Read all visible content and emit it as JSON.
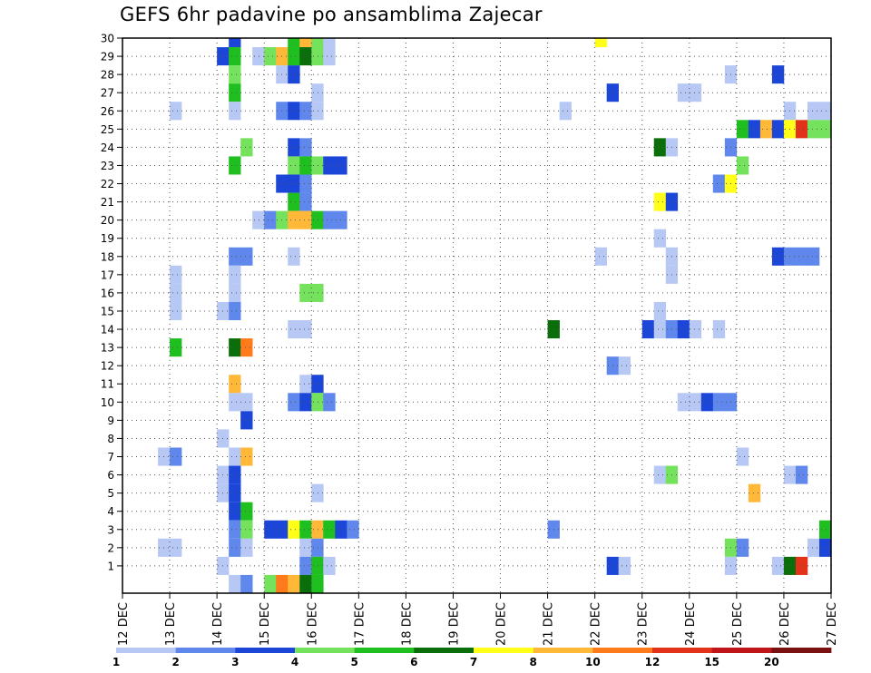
{
  "title": "GEFS 6hr padavine po ansamblima Zajecar",
  "chart_data": {
    "type": "heatmap",
    "title": "GEFS 6hr padavine po ansamblima Zajecar",
    "y_ticks": [
      1,
      2,
      3,
      4,
      5,
      6,
      7,
      8,
      9,
      10,
      11,
      12,
      13,
      14,
      15,
      16,
      17,
      18,
      19,
      20,
      21,
      22,
      23,
      24,
      25,
      26,
      27,
      28,
      29,
      30
    ],
    "x_ticks": [
      "12 DEC",
      "13 DEC",
      "14 DEC",
      "15 DEC",
      "16 DEC",
      "17 DEC",
      "18 DEC",
      "19 DEC",
      "20 DEC",
      "21 DEC",
      "22 DEC",
      "23 DEC",
      "24 DEC",
      "25 DEC",
      "26 DEC",
      "27 DEC"
    ],
    "colorbar": {
      "labels": [
        "1",
        "2",
        "3",
        "4",
        "5",
        "6",
        "7",
        "8",
        "10",
        "12",
        "15",
        "20"
      ],
      "colors": [
        "#b8c8f4",
        "#5f87ec",
        "#1c46d8",
        "#74e25c",
        "#1fbf1f",
        "#0a6e0a",
        "#ffff1a",
        "#ffb838",
        "#ff7a1a",
        "#e3321a",
        "#c0161a",
        "#7a1010"
      ]
    },
    "grid": true,
    "cells": [
      {
        "m": 30,
        "d": 14.25,
        "c": 2
      },
      {
        "m": 30,
        "d": 15.5,
        "c": 4
      },
      {
        "m": 30,
        "d": 15.75,
        "c": 7
      },
      {
        "m": 30,
        "d": 16.0,
        "c": 3
      },
      {
        "m": 30,
        "d": 16.25,
        "c": 0
      },
      {
        "m": 30,
        "d": 22.0,
        "c": 6
      },
      {
        "m": 29,
        "d": 14.0,
        "c": 2
      },
      {
        "m": 29,
        "d": 14.25,
        "c": 4
      },
      {
        "m": 29,
        "d": 14.75,
        "c": 0
      },
      {
        "m": 29,
        "d": 15.0,
        "c": 3
      },
      {
        "m": 29,
        "d": 15.25,
        "c": 7
      },
      {
        "m": 29,
        "d": 15.5,
        "c": 4
      },
      {
        "m": 29,
        "d": 15.75,
        "c": 5
      },
      {
        "m": 29,
        "d": 16.0,
        "c": 3
      },
      {
        "m": 29,
        "d": 16.25,
        "c": 0
      },
      {
        "m": 28,
        "d": 14.25,
        "c": 3
      },
      {
        "m": 28,
        "d": 15.25,
        "c": 0
      },
      {
        "m": 28,
        "d": 15.5,
        "c": 2
      },
      {
        "m": 28,
        "d": 24.75,
        "c": 0
      },
      {
        "m": 28,
        "d": 25.75,
        "c": 2
      },
      {
        "m": 27,
        "d": 14.25,
        "c": 4
      },
      {
        "m": 27,
        "d": 16.0,
        "c": 0
      },
      {
        "m": 27,
        "d": 22.25,
        "c": 2
      },
      {
        "m": 27,
        "d": 23.75,
        "c": 0
      },
      {
        "m": 27,
        "d": 24.0,
        "c": 0
      },
      {
        "m": 26,
        "d": 13.0,
        "c": 0
      },
      {
        "m": 26,
        "d": 14.25,
        "c": 0
      },
      {
        "m": 26,
        "d": 15.25,
        "c": 1
      },
      {
        "m": 26,
        "d": 15.5,
        "c": 2
      },
      {
        "m": 26,
        "d": 15.75,
        "c": 1
      },
      {
        "m": 26,
        "d": 16.0,
        "c": 0
      },
      {
        "m": 26,
        "d": 21.25,
        "c": 0
      },
      {
        "m": 26,
        "d": 26.0,
        "c": 0
      },
      {
        "m": 26,
        "d": 26.5,
        "c": 0
      },
      {
        "m": 26,
        "d": 26.75,
        "c": 0
      },
      {
        "m": 25,
        "d": 25.0,
        "c": 4
      },
      {
        "m": 25,
        "d": 25.25,
        "c": 2
      },
      {
        "m": 25,
        "d": 25.5,
        "c": 7
      },
      {
        "m": 25,
        "d": 25.75,
        "c": 2
      },
      {
        "m": 25,
        "d": 26.0,
        "c": 6
      },
      {
        "m": 25,
        "d": 26.25,
        "c": 9
      },
      {
        "m": 25,
        "d": 26.5,
        "c": 3
      },
      {
        "m": 25,
        "d": 26.75,
        "c": 3
      },
      {
        "m": 24,
        "d": 14.5,
        "c": 3
      },
      {
        "m": 24,
        "d": 15.5,
        "c": 2
      },
      {
        "m": 24,
        "d": 15.75,
        "c": 1
      },
      {
        "m": 24,
        "d": 23.25,
        "c": 5
      },
      {
        "m": 24,
        "d": 23.5,
        "c": 0
      },
      {
        "m": 24,
        "d": 24.75,
        "c": 1
      },
      {
        "m": 23,
        "d": 14.25,
        "c": 4
      },
      {
        "m": 23,
        "d": 15.5,
        "c": 3
      },
      {
        "m": 23,
        "d": 15.75,
        "c": 4
      },
      {
        "m": 23,
        "d": 16.0,
        "c": 3
      },
      {
        "m": 23,
        "d": 16.25,
        "c": 2
      },
      {
        "m": 23,
        "d": 16.5,
        "c": 2
      },
      {
        "m": 23,
        "d": 25.0,
        "c": 3
      },
      {
        "m": 22,
        "d": 15.25,
        "c": 2
      },
      {
        "m": 22,
        "d": 15.5,
        "c": 2
      },
      {
        "m": 22,
        "d": 15.75,
        "c": 1
      },
      {
        "m": 22,
        "d": 24.5,
        "c": 1
      },
      {
        "m": 22,
        "d": 24.75,
        "c": 6
      },
      {
        "m": 21,
        "d": 15.5,
        "c": 4
      },
      {
        "m": 21,
        "d": 15.75,
        "c": 1
      },
      {
        "m": 21,
        "d": 23.25,
        "c": 6
      },
      {
        "m": 21,
        "d": 23.5,
        "c": 2
      },
      {
        "m": 20,
        "d": 14.75,
        "c": 0
      },
      {
        "m": 20,
        "d": 15.0,
        "c": 1
      },
      {
        "m": 20,
        "d": 15.25,
        "c": 3
      },
      {
        "m": 20,
        "d": 15.5,
        "c": 7
      },
      {
        "m": 20,
        "d": 15.75,
        "c": 7
      },
      {
        "m": 20,
        "d": 16.0,
        "c": 4
      },
      {
        "m": 20,
        "d": 16.25,
        "c": 1
      },
      {
        "m": 20,
        "d": 16.5,
        "c": 1
      },
      {
        "m": 19,
        "d": 23.25,
        "c": 0
      },
      {
        "m": 18,
        "d": 14.25,
        "c": 1
      },
      {
        "m": 18,
        "d": 14.5,
        "c": 1
      },
      {
        "m": 18,
        "d": 15.5,
        "c": 0
      },
      {
        "m": 18,
        "d": 22.0,
        "c": 0
      },
      {
        "m": 18,
        "d": 23.5,
        "c": 0
      },
      {
        "m": 18,
        "d": 25.75,
        "c": 2
      },
      {
        "m": 18,
        "d": 26.0,
        "c": 1
      },
      {
        "m": 18,
        "d": 26.25,
        "c": 1
      },
      {
        "m": 18,
        "d": 26.5,
        "c": 1
      },
      {
        "m": 17,
        "d": 13.0,
        "c": 0
      },
      {
        "m": 17,
        "d": 14.25,
        "c": 0
      },
      {
        "m": 17,
        "d": 23.5,
        "c": 0
      },
      {
        "m": 16,
        "d": 13.0,
        "c": 0
      },
      {
        "m": 16,
        "d": 14.25,
        "c": 0
      },
      {
        "m": 16,
        "d": 15.75,
        "c": 3
      },
      {
        "m": 16,
        "d": 16.0,
        "c": 3
      },
      {
        "m": 15,
        "d": 13.0,
        "c": 0
      },
      {
        "m": 15,
        "d": 14.0,
        "c": 0
      },
      {
        "m": 15,
        "d": 14.25,
        "c": 1
      },
      {
        "m": 15,
        "d": 23.25,
        "c": 0
      },
      {
        "m": 14,
        "d": 15.5,
        "c": 0
      },
      {
        "m": 14,
        "d": 15.75,
        "c": 0
      },
      {
        "m": 14,
        "d": 21.0,
        "c": 5
      },
      {
        "m": 14,
        "d": 23.0,
        "c": 2
      },
      {
        "m": 14,
        "d": 23.25,
        "c": 0
      },
      {
        "m": 14,
        "d": 23.5,
        "c": 1
      },
      {
        "m": 14,
        "d": 23.75,
        "c": 2
      },
      {
        "m": 14,
        "d": 24.0,
        "c": 0
      },
      {
        "m": 14,
        "d": 24.5,
        "c": 0
      },
      {
        "m": 13,
        "d": 13.0,
        "c": 4
      },
      {
        "m": 13,
        "d": 14.25,
        "c": 5
      },
      {
        "m": 13,
        "d": 14.5,
        "c": 8
      },
      {
        "m": 12,
        "d": 22.25,
        "c": 1
      },
      {
        "m": 12,
        "d": 22.5,
        "c": 0
      },
      {
        "m": 11,
        "d": 14.25,
        "c": 7
      },
      {
        "m": 11,
        "d": 15.75,
        "c": 0
      },
      {
        "m": 11,
        "d": 16.0,
        "c": 2
      },
      {
        "m": 10,
        "d": 14.25,
        "c": 0
      },
      {
        "m": 10,
        "d": 14.5,
        "c": 0
      },
      {
        "m": 10,
        "d": 15.5,
        "c": 1
      },
      {
        "m": 10,
        "d": 15.75,
        "c": 2
      },
      {
        "m": 10,
        "d": 16.0,
        "c": 3
      },
      {
        "m": 10,
        "d": 16.25,
        "c": 1
      },
      {
        "m": 10,
        "d": 23.75,
        "c": 0
      },
      {
        "m": 10,
        "d": 24.0,
        "c": 0
      },
      {
        "m": 10,
        "d": 24.25,
        "c": 2
      },
      {
        "m": 10,
        "d": 24.5,
        "c": 1
      },
      {
        "m": 10,
        "d": 24.75,
        "c": 1
      },
      {
        "m": 9,
        "d": 14.5,
        "c": 2
      },
      {
        "m": 8,
        "d": 14.0,
        "c": 0
      },
      {
        "m": 7,
        "d": 12.75,
        "c": 0
      },
      {
        "m": 7,
        "d": 13.0,
        "c": 1
      },
      {
        "m": 7,
        "d": 14.25,
        "c": 0
      },
      {
        "m": 7,
        "d": 14.5,
        "c": 7
      },
      {
        "m": 7,
        "d": 25.0,
        "c": 0
      },
      {
        "m": 6,
        "d": 14.0,
        "c": 0
      },
      {
        "m": 6,
        "d": 14.25,
        "c": 2
      },
      {
        "m": 6,
        "d": 23.25,
        "c": 0
      },
      {
        "m": 6,
        "d": 23.5,
        "c": 3
      },
      {
        "m": 6,
        "d": 26.0,
        "c": 0
      },
      {
        "m": 6,
        "d": 26.25,
        "c": 1
      },
      {
        "m": 5,
        "d": 14.0,
        "c": 0
      },
      {
        "m": 5,
        "d": 14.25,
        "c": 2
      },
      {
        "m": 5,
        "d": 16.0,
        "c": 0
      },
      {
        "m": 5,
        "d": 25.25,
        "c": 7
      },
      {
        "m": 4,
        "d": 14.25,
        "c": 2
      },
      {
        "m": 4,
        "d": 14.5,
        "c": 4
      },
      {
        "m": 3,
        "d": 14.25,
        "c": 1
      },
      {
        "m": 3,
        "d": 14.5,
        "c": 3
      },
      {
        "m": 3,
        "d": 15.0,
        "c": 2
      },
      {
        "m": 3,
        "d": 15.25,
        "c": 2
      },
      {
        "m": 3,
        "d": 15.5,
        "c": 6
      },
      {
        "m": 3,
        "d": 15.75,
        "c": 4
      },
      {
        "m": 3,
        "d": 16.0,
        "c": 7
      },
      {
        "m": 3,
        "d": 16.25,
        "c": 4
      },
      {
        "m": 3,
        "d": 16.5,
        "c": 2
      },
      {
        "m": 3,
        "d": 16.75,
        "c": 1
      },
      {
        "m": 3,
        "d": 21.0,
        "c": 1
      },
      {
        "m": 3,
        "d": 26.75,
        "c": 4
      },
      {
        "m": 2,
        "d": 12.75,
        "c": 0
      },
      {
        "m": 2,
        "d": 13.0,
        "c": 0
      },
      {
        "m": 2,
        "d": 14.25,
        "c": 1
      },
      {
        "m": 2,
        "d": 14.5,
        "c": 0
      },
      {
        "m": 2,
        "d": 15.75,
        "c": 0
      },
      {
        "m": 2,
        "d": 16.0,
        "c": 1
      },
      {
        "m": 2,
        "d": 24.75,
        "c": 3
      },
      {
        "m": 2,
        "d": 25.0,
        "c": 1
      },
      {
        "m": 2,
        "d": 26.5,
        "c": 0
      },
      {
        "m": 2,
        "d": 26.75,
        "c": 2
      },
      {
        "m": 1,
        "d": 14.0,
        "c": 0
      },
      {
        "m": 1,
        "d": 15.75,
        "c": 1
      },
      {
        "m": 1,
        "d": 16.0,
        "c": 4
      },
      {
        "m": 1,
        "d": 16.25,
        "c": 0
      },
      {
        "m": 1,
        "d": 22.25,
        "c": 2
      },
      {
        "m": 1,
        "d": 22.5,
        "c": 0
      },
      {
        "m": 1,
        "d": 24.75,
        "c": 0
      },
      {
        "m": 1,
        "d": 25.75,
        "c": 0
      },
      {
        "m": 1,
        "d": 26.0,
        "c": 5
      },
      {
        "m": 1,
        "d": 26.25,
        "c": 9
      },
      {
        "m": 0,
        "d": 14.25,
        "c": 0
      },
      {
        "m": 0,
        "d": 14.5,
        "c": 1
      },
      {
        "m": 0,
        "d": 15.0,
        "c": 3
      },
      {
        "m": 0,
        "d": 15.25,
        "c": 8
      },
      {
        "m": 0,
        "d": 15.5,
        "c": 7
      },
      {
        "m": 0,
        "d": 15.75,
        "c": 5
      },
      {
        "m": 0,
        "d": 16.0,
        "c": 4
      }
    ]
  }
}
